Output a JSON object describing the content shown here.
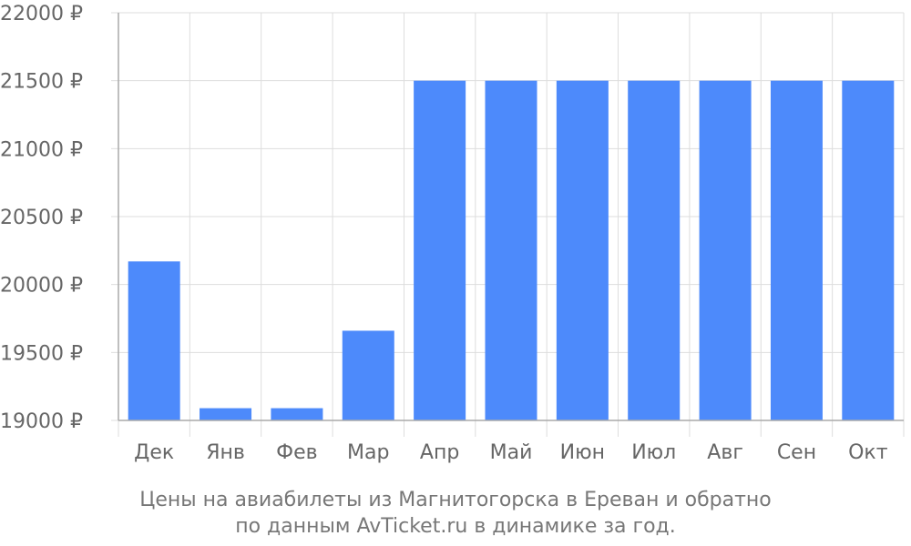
{
  "chart_data": {
    "type": "bar",
    "title": "Цены на авиабилеты из Магнитогорска в Ереван и обратно",
    "subtitle": "по данным AvTicket.ru в динамике за год.",
    "categories": [
      "Дек",
      "Янв",
      "Фев",
      "Мар",
      "Апр",
      "Май",
      "Июн",
      "Июл",
      "Авг",
      "Сен",
      "Окт"
    ],
    "values": [
      20170,
      19090,
      19090,
      19660,
      21500,
      21500,
      21500,
      21500,
      21500,
      21500,
      21500
    ],
    "ylim": [
      19000,
      22000
    ],
    "yticks": [
      19000,
      19500,
      20000,
      20500,
      21000,
      21500,
      22000
    ],
    "ytick_labels": [
      "19000 ₽",
      "19500 ₽",
      "20000 ₽",
      "20500 ₽",
      "21000 ₽",
      "21500 ₽",
      "22000 ₽"
    ],
    "xlabel": "",
    "ylabel": "",
    "grid": true,
    "legend": "none",
    "colors": {
      "bar": "#4d8afb",
      "grid": "#dddddd",
      "axis": "#aaaaaa"
    }
  }
}
